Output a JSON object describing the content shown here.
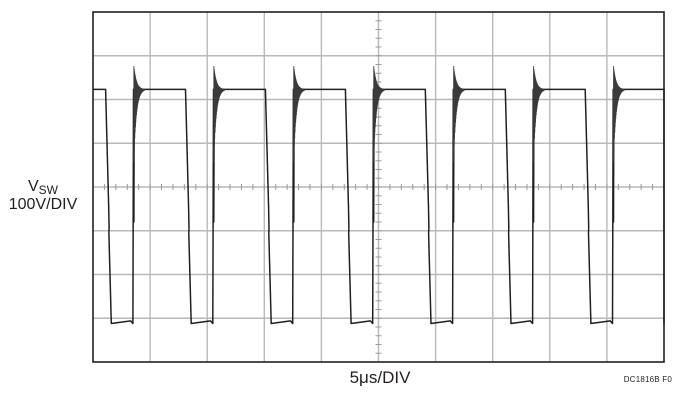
{
  "chart_data": {
    "type": "line",
    "title": "",
    "ylabel_main": "V",
    "ylabel_sub": "SW",
    "yscale": "100V/DIV",
    "xlabel": "5μs/DIV",
    "figure_code": "DC1816B F0",
    "grid": true,
    "divisions": {
      "x": 10,
      "y": 8
    },
    "xlim": [
      0,
      50
    ],
    "ylim": [
      -400,
      400
    ],
    "series": [
      {
        "period_us": 7.0,
        "high_v": 223,
        "low_v": -312,
        "first_fall_us": 1.1,
        "high_duration_us": 4.55,
        "ringing_overshoot_v": 280,
        "ringing_undershoot_v": -80
      }
    ]
  }
}
